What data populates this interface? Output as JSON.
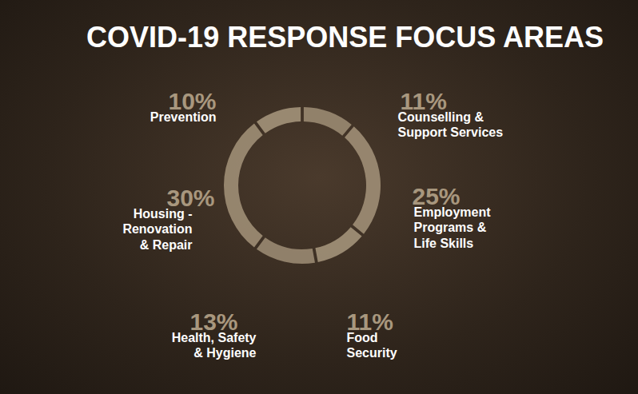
{
  "chart_data": {
    "type": "donut",
    "title": "COVID-19 RESPONSE FOCUS AREAS",
    "categories": [
      "Counselling & Support Services",
      "Employment Programs & Life Skills",
      "Food Security",
      "Health, Safety & Hygiene",
      "Housing - Renovation & Repair",
      "Prevention"
    ],
    "values": [
      11,
      25,
      11,
      13,
      30,
      10
    ],
    "value_labels": [
      "11%",
      "25%",
      "11%",
      "13%",
      "30%",
      "10%"
    ],
    "color": "#a8977e",
    "data_labels": true
  }
}
